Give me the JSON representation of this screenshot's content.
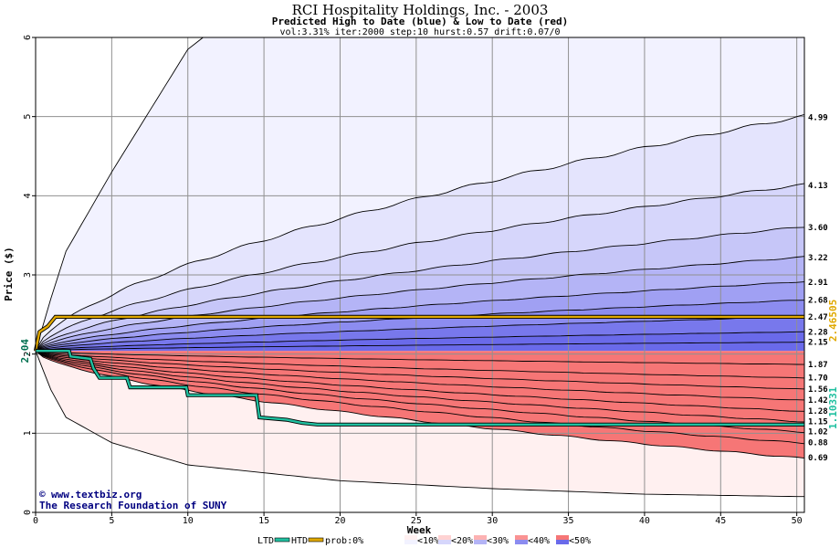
{
  "chart_data": {
    "type": "area",
    "title": "RCI Hospitality Holdings, Inc. - 2003",
    "subtitle": "Predicted High to Date (blue) &  Low to Date (red)",
    "params": "vol:3.31% iter:2000 step:10 hurst:0.57 drift:0.07/0",
    "xlabel": "Week",
    "ylabel": "Price ($)",
    "xlim": [
      0,
      50.5
    ],
    "ylim": [
      0,
      6
    ],
    "x_ticks": [
      0,
      5,
      10,
      15,
      20,
      25,
      30,
      35,
      40,
      45,
      50
    ],
    "y_ticks": [
      0,
      1,
      2,
      3,
      4,
      5,
      6
    ],
    "start_price_label": "2.04",
    "start_price": 2.04,
    "grid": true,
    "high_envelopes": [
      {
        "final": 4.99,
        "label": "4.99"
      },
      {
        "final": 4.13,
        "label": "4.13"
      },
      {
        "final": 3.6,
        "label": "3.60"
      },
      {
        "final": 3.22,
        "label": "3.22"
      },
      {
        "final": 2.91,
        "label": "2.91"
      },
      {
        "final": 2.68,
        "label": "2.68"
      },
      {
        "final": 2.47,
        "label": "2.47"
      },
      {
        "final": 2.28,
        "label": "2.28"
      },
      {
        "final": 2.15,
        "label": "2.15"
      }
    ],
    "high_outer_envelope": [
      [
        0,
        2.04
      ],
      [
        1,
        2.7
      ],
      [
        2,
        3.3
      ],
      [
        5,
        4.3
      ],
      [
        10,
        5.85
      ],
      [
        11,
        6.0
      ]
    ],
    "low_envelopes": [
      {
        "final": 1.87,
        "label": "1.87"
      },
      {
        "final": 1.7,
        "label": "1.70"
      },
      {
        "final": 1.56,
        "label": "1.56"
      },
      {
        "final": 1.42,
        "label": "1.42"
      },
      {
        "final": 1.28,
        "label": "1.28"
      },
      {
        "final": 1.15,
        "label": "1.15"
      },
      {
        "final": 1.02,
        "label": "1.02"
      },
      {
        "final": 0.88,
        "label": "0.88"
      },
      {
        "final": 0.69,
        "label": "0.69"
      }
    ],
    "low_outer_envelope": [
      [
        0,
        2.04
      ],
      [
        1,
        1.55
      ],
      [
        2,
        1.2
      ],
      [
        5,
        0.88
      ],
      [
        10,
        0.6
      ],
      [
        20,
        0.4
      ],
      [
        30,
        0.3
      ],
      [
        40,
        0.23
      ],
      [
        50,
        0.2
      ]
    ],
    "htd_series": {
      "name": "HTD",
      "color": "#e0a800",
      "points": [
        [
          0,
          2.04
        ],
        [
          0.25,
          2.28
        ],
        [
          0.8,
          2.35
        ],
        [
          1.3,
          2.47
        ],
        [
          50.5,
          2.47
        ]
      ],
      "end_label": "2.46505"
    },
    "ltd_series": {
      "name": "LTD",
      "color": "#20c0a0",
      "points": [
        [
          0,
          2.04
        ],
        [
          2.2,
          2.04
        ],
        [
          2.3,
          1.97
        ],
        [
          3.6,
          1.94
        ],
        [
          3.8,
          1.82
        ],
        [
          4.2,
          1.7
        ],
        [
          6.0,
          1.7
        ],
        [
          6.2,
          1.58
        ],
        [
          9.9,
          1.58
        ],
        [
          10.0,
          1.48
        ],
        [
          14.5,
          1.48
        ],
        [
          14.7,
          1.2
        ],
        [
          16.5,
          1.17
        ],
        [
          17.5,
          1.13
        ],
        [
          18.5,
          1.11
        ],
        [
          50.5,
          1.11
        ]
      ],
      "end_label": "1.10331"
    },
    "colors": {
      "high_bands": [
        "#f2f2ff",
        "#e4e4fd",
        "#d6d6fb",
        "#c6c6f8",
        "#b4b4f6",
        "#a0a0f3",
        "#8c8cf0",
        "#7878ec",
        "#6a6aea"
      ],
      "low_bands": [
        "#fff0f0",
        "#ffe2e2",
        "#fed2d2",
        "#fdc2c2",
        "#fcb2b2",
        "#fba2a2",
        "#fa9292",
        "#f88282",
        "#f67676"
      ]
    }
  },
  "credit": {
    "line1": "www.textbiz.org",
    "line2": "The Research Foundation of SUNY"
  },
  "legend": {
    "items": [
      "LTD",
      "HTD",
      "prob:0%",
      "<10%",
      "<20%",
      "<30%",
      "<40%",
      "<50%"
    ]
  }
}
